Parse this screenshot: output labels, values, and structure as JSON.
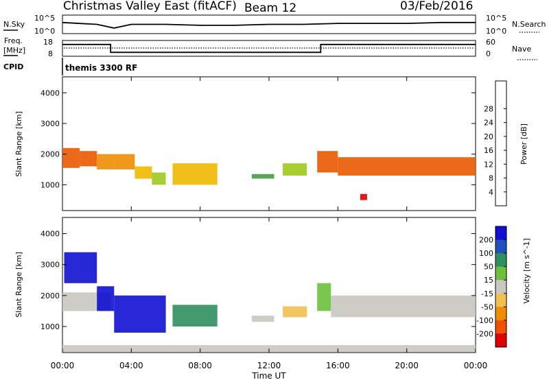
{
  "header": {
    "station": "Christmas Valley East (fitACF)",
    "beam": "Beam 12",
    "date": "03/Feb/2016"
  },
  "strip_nsky": {
    "label": "N.Sky",
    "left_ticks": [
      "10^5",
      "10^0"
    ],
    "right_ticks": [
      "10^5",
      "10^0"
    ],
    "right_label": "N.Search"
  },
  "strip_freq": {
    "label_line1": "Freq.",
    "label_line2": "[MHz]",
    "left_ticks": [
      "18",
      "8"
    ],
    "right_ticks": [
      "60",
      "0"
    ],
    "right_label": "Nave"
  },
  "cpid": {
    "label": "CPID",
    "value": "themis 3300 RF"
  },
  "x_axis": {
    "ticks": [
      "00:00",
      "04:00",
      "08:00",
      "12:00",
      "16:00",
      "20:00",
      "00:00"
    ],
    "label": "Time UT"
  },
  "power_panel": {
    "ylabel": "Slant Range [km]",
    "yticks": [
      "1000",
      "2000",
      "3000",
      "4000"
    ],
    "colorbar_label": "Power [dB]",
    "colorbar_ticks": [
      "4",
      "8",
      "12",
      "16",
      "20",
      "24",
      "28"
    ],
    "colors": [
      "#1f1fd8",
      "#1f5fa8",
      "#3c7d6c",
      "#4a9a4a",
      "#a0c81e",
      "#f0b800",
      "#f08c00",
      "#e85a00",
      "#e00000"
    ]
  },
  "velocity_panel": {
    "ylabel": "Slant Range [km]",
    "yticks": [
      "1000",
      "2000",
      "3000",
      "4000"
    ],
    "colorbar_label": "Velocity [m s^-1]",
    "colorbar_ticks": [
      "200",
      "100",
      "50",
      "15",
      "-15",
      "-50",
      "-100",
      "-200"
    ],
    "colors": [
      "#1010d0",
      "#2050c0",
      "#2f8f5f",
      "#6cc03c",
      "#c8c8c0",
      "#f0c050",
      "#f08c00",
      "#f05000",
      "#e00000"
    ]
  },
  "chart_data": [
    {
      "type": "line",
      "title": "N.Sky / N.Search",
      "x": [
        0,
        2,
        3,
        4,
        6,
        8,
        10,
        12,
        14,
        16,
        18,
        20,
        22,
        24
      ],
      "series": [
        {
          "name": "N.Sky",
          "values": [
            0.6,
            0.5,
            0.3,
            0.5,
            0.5,
            0.45,
            0.45,
            0.5,
            0.5,
            0.55,
            0.55,
            0.55,
            0.6,
            0.6
          ]
        }
      ]
    },
    {
      "type": "line",
      "title": "Freq. [MHz]",
      "x": [
        0,
        2.8,
        2.8,
        15.0,
        15.0,
        24
      ],
      "ylim": [
        8,
        18
      ],
      "series": [
        {
          "name": "Freq",
          "values": [
            15.5,
            15.5,
            10.5,
            10.5,
            15.5,
            15.5
          ]
        }
      ]
    },
    {
      "type": "heatmap",
      "title": "Power [dB]",
      "xlabel": "Time UT",
      "ylabel": "Slant Range [km]",
      "xlim": [
        0,
        24
      ],
      "ylim": [
        180,
        4500
      ],
      "clim": [
        0,
        30
      ],
      "regions": [
        {
          "t0": 0.0,
          "t1": 1.0,
          "r0": 1550,
          "r1": 2200,
          "value": 26
        },
        {
          "t0": 1.0,
          "t1": 2.0,
          "r0": 1600,
          "r1": 2100,
          "value": 24
        },
        {
          "t0": 2.0,
          "t1": 3.0,
          "r0": 1500,
          "r1": 2000,
          "value": 22
        },
        {
          "t0": 3.0,
          "t1": 4.2,
          "r0": 1500,
          "r1": 2000,
          "value": 20
        },
        {
          "t0": 4.2,
          "t1": 5.2,
          "r0": 1200,
          "r1": 1600,
          "value": 18
        },
        {
          "t0": 5.2,
          "t1": 6.0,
          "r0": 1000,
          "r1": 1400,
          "value": 16
        },
        {
          "t0": 6.4,
          "t1": 9.0,
          "r0": 1000,
          "r1": 1700,
          "value": 17
        },
        {
          "t0": 11.0,
          "t1": 12.3,
          "r0": 1200,
          "r1": 1350,
          "value": 12
        },
        {
          "t0": 12.8,
          "t1": 14.2,
          "r0": 1300,
          "r1": 1700,
          "value": 15
        },
        {
          "t0": 14.8,
          "t1": 16.0,
          "r0": 1400,
          "r1": 2100,
          "value": 24
        },
        {
          "t0": 16.0,
          "t1": 24.0,
          "r0": 1300,
          "r1": 1900,
          "value": 26
        },
        {
          "t0": 17.3,
          "t1": 17.7,
          "r0": 500,
          "r1": 700,
          "value": 28
        }
      ]
    },
    {
      "type": "heatmap",
      "title": "Velocity [m s^-1]",
      "xlabel": "Time UT",
      "ylabel": "Slant Range [km]",
      "xlim": [
        0,
        24
      ],
      "ylim": [
        180,
        4500
      ],
      "clim": [
        -200,
        200
      ],
      "regions": [
        {
          "t0": 0.0,
          "t1": 2.8,
          "r0": 1500,
          "r1": 2100,
          "value": 0
        },
        {
          "t0": 0.1,
          "t1": 2.0,
          "r0": 2400,
          "r1": 3400,
          "value": 220
        },
        {
          "t0": 2.0,
          "t1": 3.0,
          "r0": 1500,
          "r1": 2300,
          "value": 200
        },
        {
          "t0": 3.0,
          "t1": 6.0,
          "r0": 800,
          "r1": 2000,
          "value": 200
        },
        {
          "t0": 6.4,
          "t1": 9.0,
          "r0": 1000,
          "r1": 1700,
          "value": 80
        },
        {
          "t0": 11.0,
          "t1": 12.3,
          "r0": 1150,
          "r1": 1350,
          "value": 0
        },
        {
          "t0": 12.8,
          "t1": 14.2,
          "r0": 1300,
          "r1": 1650,
          "value": -60
        },
        {
          "t0": 14.8,
          "t1": 15.6,
          "r0": 1500,
          "r1": 2400,
          "value": 40
        },
        {
          "t0": 15.6,
          "t1": 24.0,
          "r0": 1300,
          "r1": 2000,
          "value": 0
        },
        {
          "t0": 0.0,
          "t1": 24.0,
          "r0": 180,
          "r1": 400,
          "value": -20
        }
      ]
    }
  ]
}
